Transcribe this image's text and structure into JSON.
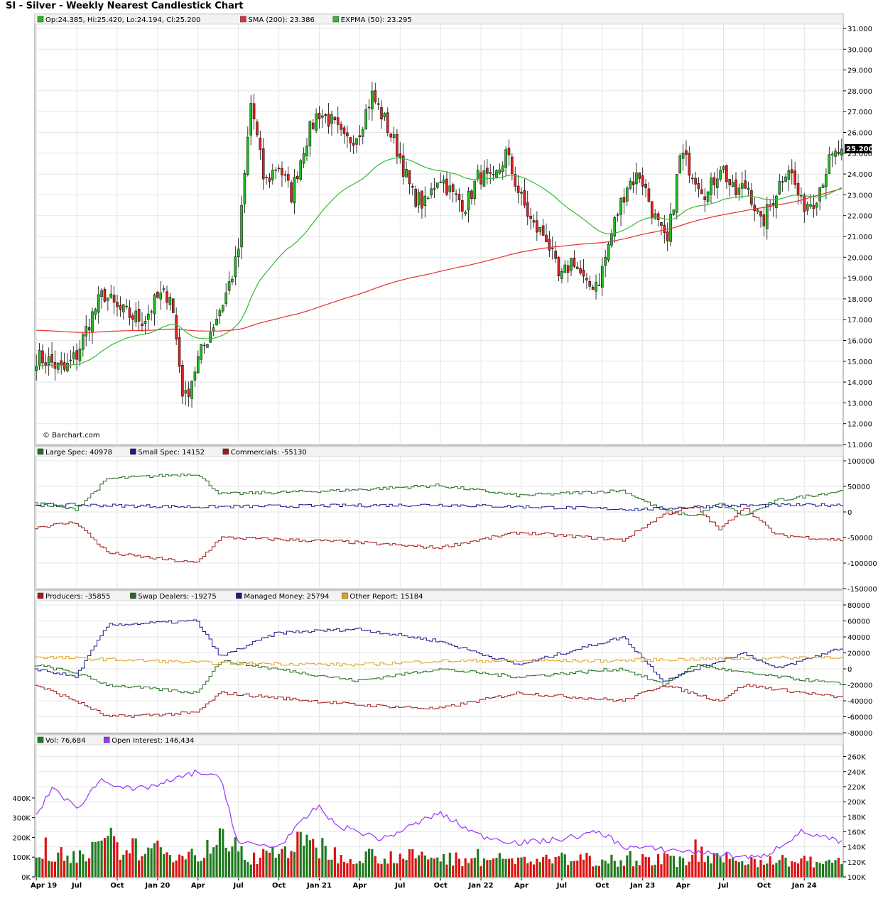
{
  "title": "SI - Silver - Weekly Nearest Candlestick Chart",
  "copyright": "© Barchart.com",
  "colors": {
    "up": "#22bb22",
    "down": "#dd2222",
    "sma": "#e53030",
    "expma": "#33bb33",
    "large_spec": "#1f6e1f",
    "small_spec": "#1a1a8a",
    "commercials": "#a31a1a",
    "producers": "#a31a1a",
    "swap_dealers": "#1f6e1f",
    "managed_money": "#1a1a8a",
    "other_report": "#e0a020",
    "open_interest": "#9933ff"
  },
  "chart_data": [
    {
      "type": "candlestick",
      "panel": "price",
      "legend": {
        "ohlc": "Op:24.385, Hi:25.420, Lo:24.194, Cl:25.200",
        "sma": "SMA (200): 23.386",
        "expma": "EXPMA (50): 23.295"
      },
      "last_price_label": "25.200",
      "last_price": 25.2,
      "ylim": [
        11,
        31
      ],
      "y_ticks": [
        "11.000",
        "12.000",
        "13.000",
        "14.000",
        "15.000",
        "16.000",
        "17.000",
        "18.000",
        "19.000",
        "20.000",
        "21.000",
        "22.000",
        "23.000",
        "24.000",
        "25.000",
        "26.000",
        "27.000",
        "28.000",
        "29.000",
        "30.000",
        "31.000"
      ],
      "x_ticks": [
        "Apr 19",
        "Jul",
        "Oct",
        "Jan 20",
        "Apr",
        "Jul",
        "Oct",
        "Jan 21",
        "Apr",
        "Jul",
        "Oct",
        "Jan 22",
        "Apr",
        "Jul",
        "Oct",
        "Jan 23",
        "Apr",
        "Jul",
        "Oct",
        "Jan 24"
      ],
      "close_anchors": [
        [
          "Apr 19",
          15.2
        ],
        [
          "May 19",
          15.0
        ],
        [
          "Jun 19",
          14.5
        ],
        [
          "Jul 19",
          15.3
        ],
        [
          "Aug 19",
          17.0
        ],
        [
          "Sep 19",
          18.3
        ],
        [
          "Oct 19",
          17.5
        ],
        [
          "Nov 19",
          17.2
        ],
        [
          "Dec 19",
          17.0
        ],
        [
          "Jan 20",
          18.0
        ],
        [
          "Feb 20",
          18.3
        ],
        [
          "Mar 20",
          13.0
        ],
        [
          "Apr 20",
          15.0
        ],
        [
          "May 20",
          16.5
        ],
        [
          "Jun 20",
          18.0
        ],
        [
          "Jul 20",
          20.0
        ],
        [
          "Aug 20",
          27.5
        ],
        [
          "Sep 20",
          23.5
        ],
        [
          "Oct 20",
          24.5
        ],
        [
          "Nov 20",
          23.0
        ],
        [
          "Dec 20",
          25.5
        ],
        [
          "Jan 21",
          27.0
        ],
        [
          "Feb 21",
          26.5
        ],
        [
          "Mar 21",
          25.5
        ],
        [
          "Apr 21",
          26.0
        ],
        [
          "May 21",
          27.8
        ],
        [
          "Jun 21",
          26.5
        ],
        [
          "Jul 21",
          25.0
        ],
        [
          "Aug 21",
          23.0
        ],
        [
          "Sep 21",
          22.5
        ],
        [
          "Oct 21",
          24.0
        ],
        [
          "Nov 21",
          23.0
        ],
        [
          "Dec 21",
          22.5
        ],
        [
          "Jan 22",
          24.0
        ],
        [
          "Feb 22",
          23.5
        ],
        [
          "Mar 22",
          25.0
        ],
        [
          "Apr 22",
          23.0
        ],
        [
          "May 22",
          21.5
        ],
        [
          "Jun 22",
          21.0
        ],
        [
          "Jul 22",
          18.8
        ],
        [
          "Aug 22",
          20.0
        ],
        [
          "Sep 22",
          18.5
        ],
        [
          "Oct 22",
          19.0
        ],
        [
          "Nov 22",
          21.5
        ],
        [
          "Dec 22",
          23.5
        ],
        [
          "Jan 23",
          24.0
        ],
        [
          "Feb 23",
          22.0
        ],
        [
          "Mar 23",
          20.5
        ],
        [
          "Apr 23",
          25.0
        ],
        [
          "May 23",
          24.0
        ],
        [
          "Jun 23",
          23.0
        ],
        [
          "Jul 23",
          24.5
        ],
        [
          "Aug 23",
          23.0
        ],
        [
          "Sep 23",
          23.5
        ],
        [
          "Oct 23",
          21.5
        ],
        [
          "Nov 23",
          23.0
        ],
        [
          "Dec 23",
          24.5
        ],
        [
          "Jan 24",
          22.5
        ],
        [
          "Feb 24",
          22.8
        ],
        [
          "Mar 24",
          24.5
        ],
        [
          "Apr 24",
          25.2
        ]
      ]
    },
    {
      "type": "line",
      "panel": "cot-legacy",
      "legend": {
        "large_spec": "Large Spec: 40978",
        "small_spec": "Small Spec: 14152",
        "commercials": "Commercials: -55130"
      },
      "ylim": [
        -150000,
        100000
      ],
      "y_ticks": [
        "100000",
        "50000",
        "0",
        "-50000",
        "-100000",
        "-150000"
      ],
      "series": [
        {
          "name": "Large Spec",
          "anchors": [
            [
              0,
              15000
            ],
            [
              0.05,
              5000
            ],
            [
              0.09,
              65000
            ],
            [
              0.2,
              75000
            ],
            [
              0.23,
              35000
            ],
            [
              0.38,
              42000
            ],
            [
              0.5,
              52000
            ],
            [
              0.6,
              32000
            ],
            [
              0.73,
              42000
            ],
            [
              0.78,
              2000
            ],
            [
              0.82,
              -8000
            ],
            [
              0.85,
              17000
            ],
            [
              0.88,
              -8000
            ],
            [
              0.92,
              22000
            ],
            [
              1.0,
              41000
            ]
          ]
        },
        {
          "name": "Small Spec",
          "anchors": [
            [
              0,
              15000
            ],
            [
              0.2,
              10000
            ],
            [
              0.5,
              14000
            ],
            [
              0.75,
              5000
            ],
            [
              0.85,
              12000
            ],
            [
              1.0,
              14000
            ]
          ]
        },
        {
          "name": "Commercials",
          "anchors": [
            [
              0,
              -30000
            ],
            [
              0.05,
              -20000
            ],
            [
              0.09,
              -80000
            ],
            [
              0.2,
              -100000
            ],
            [
              0.23,
              -50000
            ],
            [
              0.38,
              -58000
            ],
            [
              0.5,
              -70000
            ],
            [
              0.6,
              -40000
            ],
            [
              0.73,
              -55000
            ],
            [
              0.78,
              -5000
            ],
            [
              0.82,
              10000
            ],
            [
              0.85,
              -35000
            ],
            [
              0.88,
              10000
            ],
            [
              0.92,
              -45000
            ],
            [
              1.0,
              -55000
            ]
          ]
        }
      ]
    },
    {
      "type": "line",
      "panel": "cot-disaggregated",
      "legend": {
        "producers": "Producers: -35855",
        "swap_dealers": "Swap Dealers: -19275",
        "managed_money": "Managed Money: 25794",
        "other_report": "Other Report: 15184"
      },
      "ylim": [
        -80000,
        80000
      ],
      "y_ticks": [
        "80000",
        "60000",
        "40000",
        "20000",
        "0",
        "-20000",
        "-40000",
        "-60000",
        "-80000"
      ],
      "series": [
        {
          "name": "Producers",
          "anchors": [
            [
              0,
              -20000
            ],
            [
              0.05,
              -40000
            ],
            [
              0.09,
              -60000
            ],
            [
              0.2,
              -55000
            ],
            [
              0.23,
              -30000
            ],
            [
              0.4,
              -45000
            ],
            [
              0.5,
              -50000
            ],
            [
              0.6,
              -30000
            ],
            [
              0.73,
              -40000
            ],
            [
              0.78,
              -20000
            ],
            [
              0.85,
              -40000
            ],
            [
              0.88,
              -20000
            ],
            [
              1.0,
              -36000
            ]
          ]
        },
        {
          "name": "Swap Dealers",
          "anchors": [
            [
              0,
              5000
            ],
            [
              0.05,
              -5000
            ],
            [
              0.09,
              -20000
            ],
            [
              0.2,
              -30000
            ],
            [
              0.23,
              10000
            ],
            [
              0.4,
              -15000
            ],
            [
              0.5,
              0
            ],
            [
              0.6,
              -10000
            ],
            [
              0.73,
              0
            ],
            [
              0.78,
              -20000
            ],
            [
              0.82,
              5000
            ],
            [
              0.88,
              -5000
            ],
            [
              1.0,
              -19000
            ]
          ]
        },
        {
          "name": "Managed Money",
          "anchors": [
            [
              0,
              0
            ],
            [
              0.05,
              -10000
            ],
            [
              0.09,
              55000
            ],
            [
              0.2,
              60000
            ],
            [
              0.23,
              15000
            ],
            [
              0.3,
              45000
            ],
            [
              0.4,
              50000
            ],
            [
              0.5,
              35000
            ],
            [
              0.6,
              5000
            ],
            [
              0.73,
              40000
            ],
            [
              0.78,
              -15000
            ],
            [
              0.82,
              0
            ],
            [
              0.88,
              20000
            ],
            [
              0.92,
              0
            ],
            [
              1.0,
              26000
            ]
          ]
        },
        {
          "name": "Other Report",
          "anchors": [
            [
              0,
              15000
            ],
            [
              0.2,
              8000
            ],
            [
              0.4,
              5000
            ],
            [
              0.5,
              10000
            ],
            [
              0.7,
              10000
            ],
            [
              0.8,
              12000
            ],
            [
              1.0,
              15000
            ]
          ]
        }
      ]
    },
    {
      "type": "bar+line",
      "panel": "volume",
      "legend": {
        "volume": "Vol: 76,684",
        "open_interest": "Open Interest: 146,434"
      },
      "volume_ticks": [
        "0K",
        "100K",
        "200K",
        "300K",
        "400K"
      ],
      "oi_ticks": [
        "100K",
        "120K",
        "140K",
        "160K",
        "180K",
        "200K",
        "220K",
        "240K",
        "260K"
      ],
      "volume_ylim": [
        0,
        450
      ],
      "oi_ylim": [
        100,
        270
      ],
      "open_interest_anchors": [
        [
          0,
          180
        ],
        [
          0.02,
          220
        ],
        [
          0.05,
          190
        ],
        [
          0.08,
          230
        ],
        [
          0.12,
          215
        ],
        [
          0.16,
          225
        ],
        [
          0.2,
          240
        ],
        [
          0.23,
          230
        ],
        [
          0.25,
          145
        ],
        [
          0.3,
          140
        ],
        [
          0.35,
          195
        ],
        [
          0.37,
          170
        ],
        [
          0.43,
          150
        ],
        [
          0.5,
          185
        ],
        [
          0.55,
          155
        ],
        [
          0.6,
          145
        ],
        [
          0.65,
          150
        ],
        [
          0.7,
          160
        ],
        [
          0.73,
          140
        ],
        [
          0.8,
          135
        ],
        [
          0.9,
          125
        ],
        [
          0.95,
          160
        ],
        [
          1.0,
          146
        ]
      ],
      "volume_anchors": [
        [
          0,
          80
        ],
        [
          0.09,
          160
        ],
        [
          0.2,
          120
        ],
        [
          0.23,
          200
        ],
        [
          0.27,
          100
        ],
        [
          0.33,
          180
        ],
        [
          0.37,
          120
        ],
        [
          0.45,
          110
        ],
        [
          0.5,
          100
        ],
        [
          0.6,
          90
        ],
        [
          0.7,
          95
        ],
        [
          0.8,
          90
        ],
        [
          0.9,
          90
        ],
        [
          1.0,
          77
        ]
      ]
    }
  ]
}
